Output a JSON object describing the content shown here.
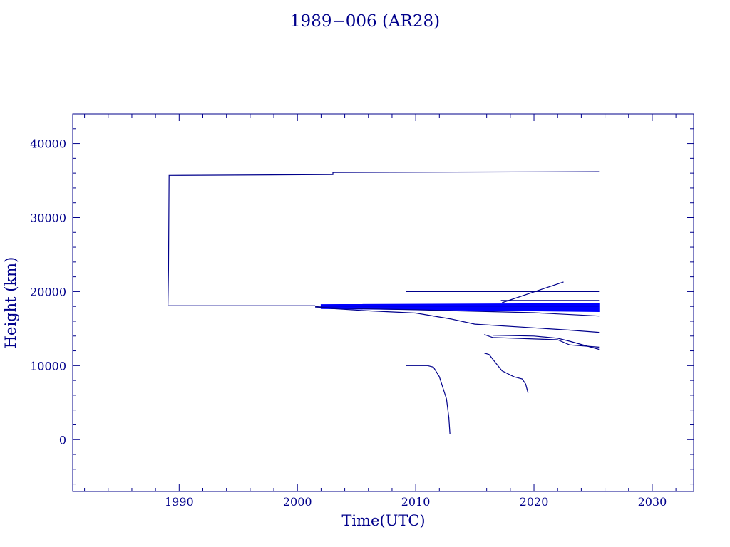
{
  "chart_data": {
    "type": "line",
    "title": "1989−006 (AR28)",
    "xlabel": "Time(UTC)",
    "ylabel": "Height (km)",
    "xlim": [
      1981,
      2033.5
    ],
    "ylim": [
      -7000,
      44000
    ],
    "xticks": [
      1990,
      2000,
      2010,
      2020,
      2030
    ],
    "yticks": [
      0,
      10000,
      20000,
      30000,
      40000
    ],
    "grid": false,
    "colors": {
      "axis": "#00008b",
      "line": "#00008b",
      "band": "#0000ff"
    },
    "series": [
      {
        "values": [
          [
            1989.05,
            18200
          ],
          [
            1989.1,
            23000
          ],
          [
            1989.15,
            35700
          ],
          [
            2003,
            35800
          ],
          [
            2003,
            36100
          ],
          [
            2025.5,
            36200
          ]
        ]
      },
      {
        "values": [
          [
            1989.05,
            18100
          ],
          [
            2001.5,
            18100
          ]
        ]
      },
      {
        "values": [
          [
            2001.5,
            18000
          ],
          [
            2003,
            17700
          ],
          [
            2006,
            17400
          ],
          [
            2010,
            17100
          ],
          [
            2013,
            16300
          ],
          [
            2015,
            15600
          ],
          [
            2020,
            15100
          ],
          [
            2023,
            14800
          ],
          [
            2025.5,
            14500
          ]
        ]
      },
      {
        "values": [
          [
            2009.2,
            20000
          ],
          [
            2025.5,
            20000
          ]
        ]
      },
      {
        "values": [
          [
            2017.2,
            18800
          ],
          [
            2025.5,
            18800
          ]
        ]
      },
      {
        "values": [
          [
            2017.3,
            18500
          ],
          [
            2022.5,
            21300
          ]
        ]
      },
      {
        "values": [
          [
            2001.5,
            17900
          ],
          [
            2005,
            17700
          ],
          [
            2010,
            17550
          ],
          [
            2015,
            17350
          ],
          [
            2020,
            17150
          ],
          [
            2025.5,
            16700
          ]
        ]
      },
      {
        "values": [
          [
            2015.8,
            14200
          ],
          [
            2016.5,
            13800
          ],
          [
            2020,
            13600
          ],
          [
            2022,
            13500
          ],
          [
            2023,
            12800
          ],
          [
            2025.5,
            12500
          ]
        ]
      },
      {
        "values": [
          [
            2016.5,
            14100
          ],
          [
            2020,
            14000
          ],
          [
            2022,
            13700
          ],
          [
            2023,
            13300
          ],
          [
            2025.5,
            12200
          ]
        ]
      },
      {
        "values": [
          [
            2009.2,
            10000
          ],
          [
            2011,
            10000
          ],
          [
            2011.5,
            9800
          ],
          [
            2012,
            8500
          ],
          [
            2012.3,
            7000
          ],
          [
            2012.6,
            5500
          ],
          [
            2012.8,
            3000
          ],
          [
            2012.9,
            700
          ]
        ]
      },
      {
        "values": [
          [
            2015.8,
            11700
          ],
          [
            2016.2,
            11500
          ],
          [
            2016.8,
            10300
          ],
          [
            2017.3,
            9300
          ],
          [
            2018.3,
            8500
          ],
          [
            2019,
            8200
          ],
          [
            2019.3,
            7500
          ],
          [
            2019.5,
            6300
          ]
        ]
      },
      {
        "values": [
          [
            2001.5,
            18050
          ],
          [
            2025.5,
            18050
          ]
        ]
      }
    ],
    "band": {
      "x": [
        2002,
        2025.5
      ],
      "top": [
        18250,
        18400
      ],
      "bottom": [
        17700,
        17300
      ]
    }
  }
}
